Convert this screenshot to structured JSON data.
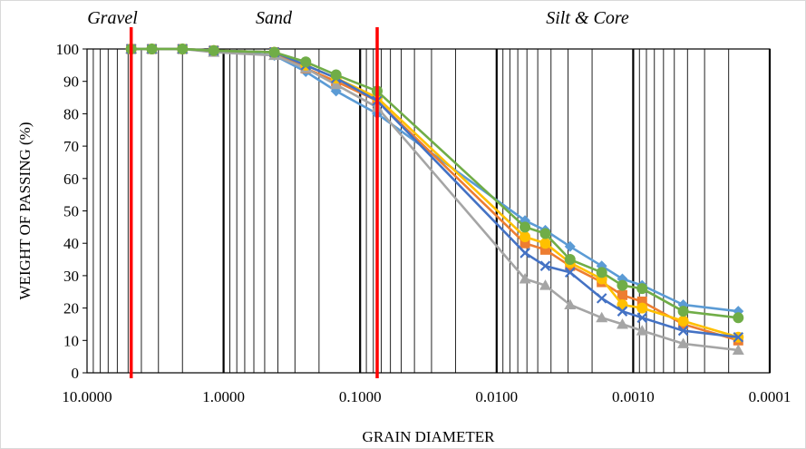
{
  "chart_data": {
    "type": "line",
    "title": "",
    "xlabel": "GRAIN DIAMETER",
    "ylabel": "WEIGHT OF PASSING (%)",
    "x_scale": "log",
    "x_reversed": true,
    "xlim": [
      10,
      0.0001
    ],
    "ylim": [
      0,
      100
    ],
    "x_tick_labels": [
      "10.0000",
      "1.0000",
      "0.1000",
      "0.0100",
      "0.0010",
      "0.0001"
    ],
    "y_tick_labels": [
      "0",
      "10",
      "20",
      "30",
      "40",
      "50",
      "60",
      "70",
      "80",
      "90",
      "100"
    ],
    "grid": "log minor and major vertical gridlines; no horizontal gridlines",
    "legend": "none",
    "zones": [
      {
        "label": "Gravel"
      },
      {
        "label": "Sand"
      },
      {
        "label": "Silt & Core"
      }
    ],
    "boundaries": [
      {
        "x": 4.75,
        "color": "#ff0000"
      },
      {
        "x": 0.075,
        "color": "#ff0000"
      }
    ],
    "series": [
      {
        "color": "#5b9bd5",
        "marker": "diamond",
        "x": [
          4.75,
          3.35,
          2.0,
          1.18,
          0.425,
          0.25,
          0.15,
          0.075,
          0.0062,
          0.0044,
          0.0029,
          0.0017,
          0.0012,
          0.00086,
          0.00043,
          0.00017
        ],
        "y": [
          100,
          100,
          100,
          99.5,
          98,
          93,
          87,
          80,
          47,
          44,
          39,
          33,
          29,
          27,
          21,
          19
        ]
      },
      {
        "color": "#ed7d31",
        "marker": "square",
        "x": [
          4.75,
          3.35,
          2.0,
          1.18,
          0.425,
          0.25,
          0.15,
          0.075,
          0.0062,
          0.0044,
          0.0029,
          0.0017,
          0.0012,
          0.00086,
          0.00043,
          0.00017
        ],
        "y": [
          100,
          100,
          100,
          99.5,
          99,
          94,
          90,
          84,
          40,
          38,
          33,
          28,
          24,
          22,
          15,
          10
        ]
      },
      {
        "color": "#a5a5a5",
        "marker": "triangle",
        "x": [
          4.75,
          3.35,
          2.0,
          1.18,
          0.425,
          0.25,
          0.15,
          0.075,
          0.0062,
          0.0044,
          0.0029,
          0.0017,
          0.0012,
          0.00086,
          0.00043,
          0.00017
        ],
        "y": [
          100,
          100,
          100,
          99,
          98,
          94,
          89,
          82,
          29,
          27,
          21,
          17,
          15,
          13,
          9,
          7
        ]
      },
      {
        "color": "#ffc000",
        "marker": "circle",
        "x": [
          4.75,
          3.35,
          2.0,
          1.18,
          0.425,
          0.25,
          0.15,
          0.075,
          0.0062,
          0.0044,
          0.0029,
          0.0017,
          0.0012,
          0.00086,
          0.00043,
          0.00017
        ],
        "y": [
          100,
          100,
          100,
          99.5,
          99,
          95,
          91,
          85,
          42,
          40,
          34,
          29,
          21,
          20,
          16,
          11
        ]
      },
      {
        "color": "#4472c4",
        "marker": "x",
        "x": [
          4.75,
          3.35,
          2.0,
          1.18,
          0.425,
          0.25,
          0.15,
          0.075,
          0.0062,
          0.0044,
          0.0029,
          0.0017,
          0.0012,
          0.00086,
          0.00043,
          0.00017
        ],
        "y": [
          100,
          100,
          100,
          99.5,
          99,
          95,
          91,
          84,
          37,
          33,
          31,
          23,
          19,
          17,
          13,
          11
        ]
      },
      {
        "color": "#70ad47",
        "marker": "circle",
        "x": [
          4.75,
          3.35,
          2.0,
          1.18,
          0.425,
          0.25,
          0.15,
          0.075,
          0.0062,
          0.0044,
          0.0029,
          0.0017,
          0.0012,
          0.00086,
          0.00043,
          0.00017
        ],
        "y": [
          100,
          100,
          100,
          99.5,
          99,
          96,
          92,
          87,
          45,
          43,
          35,
          31,
          27,
          26,
          19,
          17
        ]
      }
    ]
  }
}
